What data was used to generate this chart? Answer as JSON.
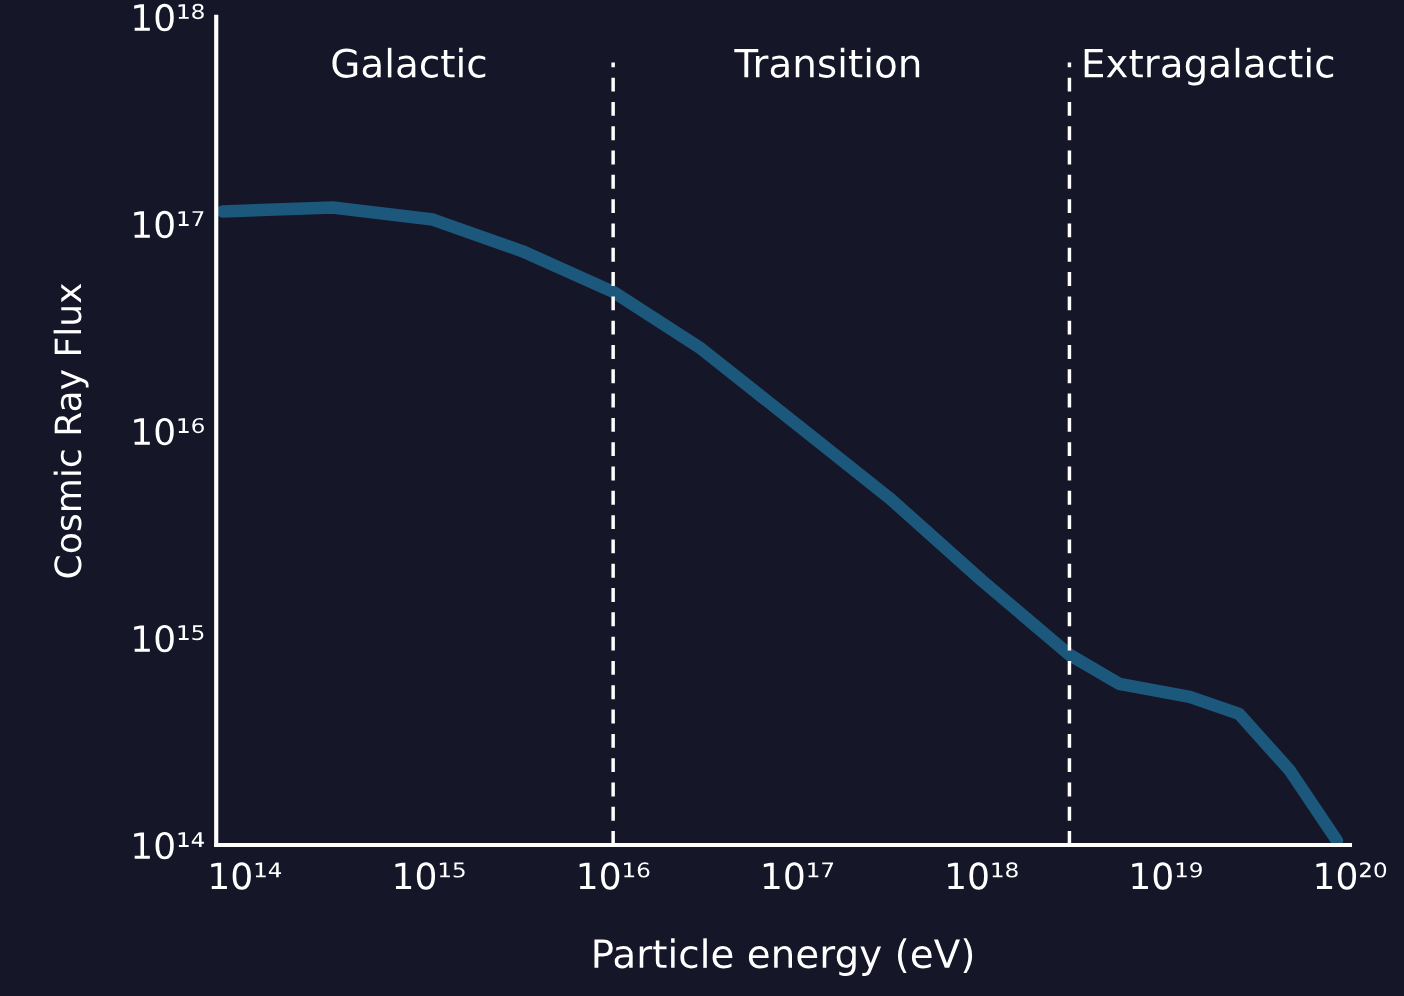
{
  "chart_data": {
    "type": "line",
    "xlabel": "Particle energy (eV)",
    "ylabel": "Cosmic Ray Flux",
    "log": "xy",
    "grid": false,
    "legend": false,
    "marker": "none",
    "line_style": "solid",
    "x": [
      76000000000000.0,
      300000000000000.0,
      1050000000000000.0,
      3200000000000000.0,
      1e+16,
      3e+16,
      1e+17,
      3.2e+17,
      1e+18,
      3e+18,
      5.6e+18,
      1.35e+19,
      2.5e+19,
      4.7e+19,
      8.5e+19
    ],
    "series": [
      {
        "color": "#1d5e85",
        "values": [
          1.15e+17,
          1.2e+17,
          1.05e+17,
          7.4e+16,
          4.7e+16,
          2.5e+16,
          1.07e+16,
          4700000000000000.0,
          1900000000000000.0,
          830000000000000.0,
          600000000000000.0,
          520000000000000.0,
          430000000000000.0,
          230000000000000.0,
          105000000000000.0
        ]
      }
    ],
    "xlim": [
      70000000000000.0,
      1e+20
    ],
    "ylim": [
      100000000000000.0,
      1e+18
    ],
    "xticks": [
      {
        "value": 100000000000000.0,
        "label": "10¹⁴"
      },
      {
        "value": 1000000000000000.0,
        "label": "10¹⁵"
      },
      {
        "value": 1e+16,
        "label": "10¹⁶"
      },
      {
        "value": 1e+17,
        "label": "10¹⁷"
      },
      {
        "value": 1e+18,
        "label": "10¹⁸"
      },
      {
        "value": 1e+19,
        "label": "10¹⁹"
      },
      {
        "value": 1e+20,
        "label": "10²⁰"
      }
    ],
    "yticks": [
      {
        "value": 100000000000000.0,
        "label": "10¹⁴"
      },
      {
        "value": 1000000000000000.0,
        "label": "10¹⁵"
      },
      {
        "value": 1e+16,
        "label": "10¹⁶"
      },
      {
        "value": 1e+17,
        "label": "10¹⁷"
      },
      {
        "value": 1e+18,
        "label": "10¹⁸"
      }
    ],
    "ref_lines": [
      {
        "axis": "x",
        "value": 1e+16,
        "color": "#ffffff",
        "line_style": "dashed"
      },
      {
        "axis": "x",
        "value": 3e+18,
        "color": "#ffffff",
        "line_style": "dashed"
      }
    ],
    "annotations": [
      "Galactic",
      "Transition",
      "Extragalactic"
    ]
  }
}
